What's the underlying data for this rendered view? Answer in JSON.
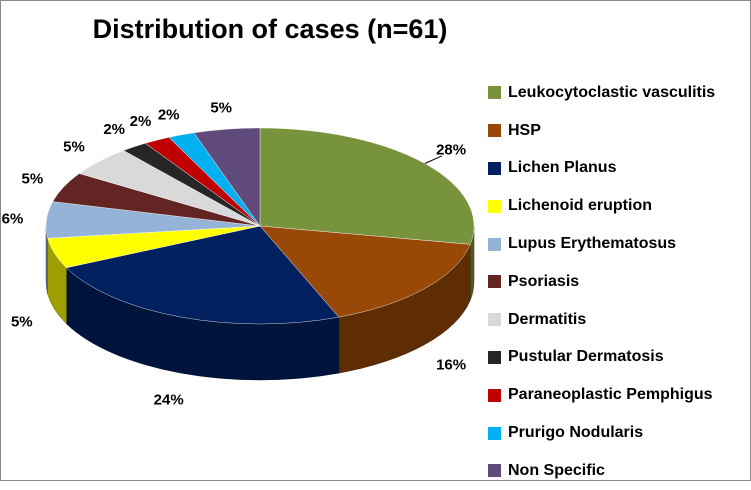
{
  "chart_data": {
    "type": "pie",
    "title": "Distribution of cases (n=61)",
    "categories": [
      "Leukocytoclastic vasculitis",
      "HSP",
      "Lichen Planus",
      "Lichenoid eruption",
      "Lupus Erythematosus",
      "Psoriasis",
      "Dermatitis",
      "Pustular Dermatosis",
      "Paraneoplastic Pemphigus",
      "Prurigo Nodularis",
      "Non Specific"
    ],
    "values": [
      28,
      16,
      24,
      5,
      6,
      5,
      5,
      2,
      2,
      2,
      5
    ],
    "labels": [
      "28%",
      "16%",
      "24%",
      "5%",
      "6%",
      "5%",
      "5%",
      "2%",
      "2%",
      "2%",
      "5%"
    ],
    "colors": [
      "#77933c",
      "#984807",
      "#002060",
      "#ffff00",
      "#95b3d7",
      "#632523",
      "#d9d9d9",
      "#262626",
      "#c00000",
      "#00b0f0",
      "#604a7b"
    ],
    "legend_position": "right",
    "style": "3d"
  }
}
